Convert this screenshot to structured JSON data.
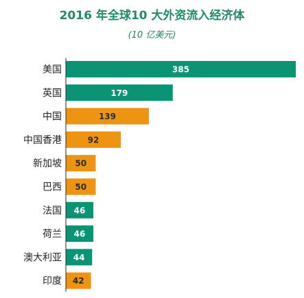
{
  "chart_data": {
    "type": "bar",
    "orientation": "horizontal",
    "title": "2016 年全球10 大外资流入经济体",
    "subtitle": "(10 亿美元)",
    "categories": [
      "美国",
      "英国",
      "中国",
      "中国香港",
      "新加坡",
      "巴西",
      "法国",
      "荷兰",
      "澳大利亚",
      "印度"
    ],
    "values": [
      385,
      179,
      139,
      92,
      50,
      50,
      46,
      46,
      44,
      42
    ],
    "group": [
      "developed",
      "developed",
      "developing",
      "developing",
      "developing",
      "developing",
      "developed",
      "developed",
      "developed",
      "developing"
    ],
    "colors": {
      "developed": "#0b9474",
      "developing": "#ef9412",
      "title": "#1e8a6a",
      "axis": "#2a2a2a"
    },
    "xlim": [
      0,
      385
    ],
    "grid": false,
    "legend": "none"
  }
}
